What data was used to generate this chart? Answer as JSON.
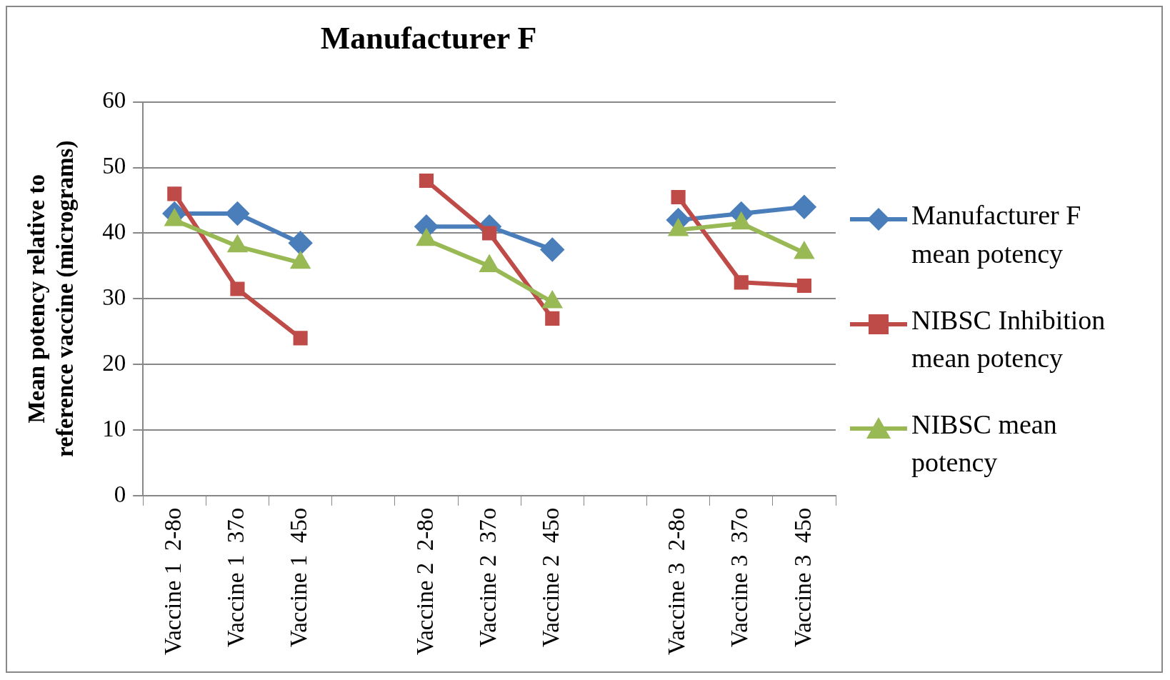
{
  "chart_data": {
    "type": "line",
    "title": "Manufacturer F",
    "ylabel": "Mean potency relative to reference vaccine (micrograms)",
    "categories": [
      "Vaccine 1  2-8o",
      "Vaccine 1  37o",
      "Vaccine 1  45o",
      null,
      "Vaccine 2  2-8o",
      "Vaccine 2  37o",
      "Vaccine 2  45o",
      null,
      "Vaccine 3  2-8o",
      "Vaccine 3  37o",
      "Vaccine 3  45o"
    ],
    "series": [
      {
        "name": "Manufacturer F mean potency",
        "color": "#4a7ebb",
        "marker": "diamond",
        "values": [
          43,
          43,
          38.5,
          null,
          41,
          41,
          37.5,
          null,
          42,
          43,
          44
        ]
      },
      {
        "name": "NIBSC Inhibition mean potency",
        "color": "#be4b48",
        "marker": "square",
        "values": [
          46,
          31.5,
          24,
          null,
          48,
          40,
          27,
          null,
          45.5,
          32.5,
          32
        ]
      },
      {
        "name": "NIBSC mean potency",
        "color": "#98b954",
        "marker": "triangle",
        "values": [
          42,
          38,
          35.5,
          null,
          39,
          35,
          29.5,
          null,
          40.5,
          41.5,
          37
        ]
      }
    ],
    "ylim": [
      0,
      60
    ],
    "yticks": [
      0,
      10,
      20,
      30,
      40,
      50,
      60
    ],
    "grid": "y",
    "legend": "right",
    "line_style": "solid"
  }
}
